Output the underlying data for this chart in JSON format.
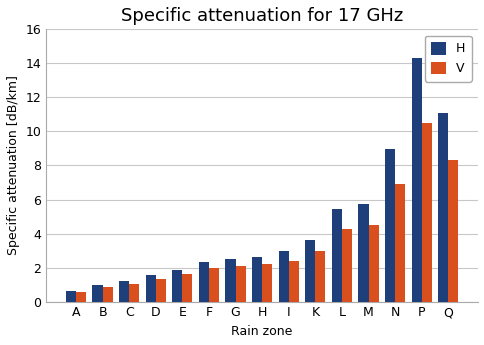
{
  "title": "Specific attenuation for 17 GHz",
  "xlabel": "Rain zone",
  "ylabel": "Specific attenuation [dB/km]",
  "categories": [
    "A",
    "B",
    "C",
    "D",
    "E",
    "F",
    "G",
    "H",
    "I",
    "K",
    "L",
    "M",
    "N",
    "P",
    "Q"
  ],
  "H_values": [
    0.6,
    0.95,
    1.2,
    1.55,
    1.85,
    2.3,
    2.5,
    2.65,
    2.95,
    3.65,
    5.45,
    5.75,
    8.95,
    14.3,
    11.1
  ],
  "V_values": [
    0.55,
    0.85,
    1.05,
    1.35,
    1.6,
    2.0,
    2.1,
    2.2,
    2.4,
    2.95,
    4.25,
    4.5,
    6.9,
    10.5,
    8.3
  ],
  "color_H": "#1f3f7a",
  "color_V": "#d94f1e",
  "ylim": [
    0,
    16
  ],
  "yticks": [
    0,
    2,
    4,
    6,
    8,
    10,
    12,
    14,
    16
  ],
  "bar_width": 0.38,
  "legend_labels": [
    "H",
    "V"
  ],
  "grid_color": "#c8c8c8",
  "background_color": "#ffffff",
  "title_fontsize": 13,
  "axis_label_fontsize": 9,
  "tick_fontsize": 9,
  "legend_fontsize": 9
}
